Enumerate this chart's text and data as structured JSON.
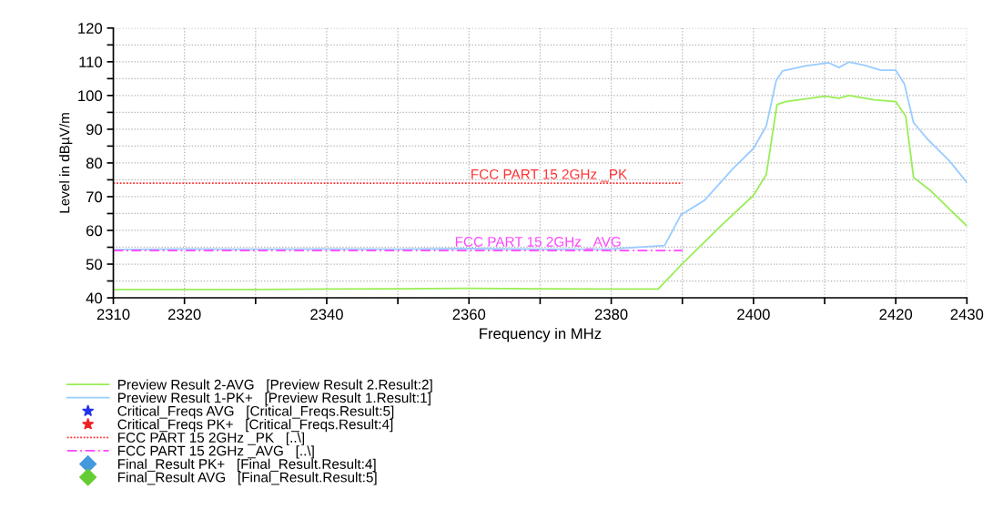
{
  "chart_data": {
    "type": "line",
    "xlabel": "Frequency in MHz",
    "ylabel": "Level in dBµV/m",
    "xlim": [
      2310,
      2430
    ],
    "ylim": [
      40,
      120
    ],
    "xticks": [
      2310,
      2320,
      {
        "value": 2330,
        "label": null
      },
      2340,
      {
        "value": 2350,
        "label": null
      },
      2360,
      {
        "value": 2370,
        "label": null
      },
      2380,
      {
        "value": 2390,
        "label": null
      },
      2400,
      {
        "value": 2410,
        "label": null
      },
      2420,
      2430
    ],
    "yticks": [
      40,
      {
        "value": 45,
        "label": null
      },
      50,
      {
        "value": 55,
        "label": null
      },
      60,
      {
        "value": 65,
        "label": null
      },
      70,
      {
        "value": 75,
        "label": null
      },
      80,
      {
        "value": 85,
        "label": null
      },
      90,
      {
        "value": 95,
        "label": null
      },
      100,
      {
        "value": 105,
        "label": null
      },
      110,
      {
        "value": 115,
        "label": null
      },
      120
    ],
    "grid": true,
    "legend": "bottom",
    "series": [
      {
        "name": "Preview Result 2-AVG   [Preview Result 2.Result:2]",
        "color": "#99ee55",
        "x": [
          2310,
          2320,
          2330,
          2340,
          2350,
          2360,
          2370,
          2380,
          2386.6,
          2389.8,
          2395.4,
          2400,
          2401.8,
          2402.5,
          2403.3,
          2404.5,
          2410.1,
          2412,
          2413.4,
          2417,
          2420,
          2421.4,
          2422.5,
          2424.9,
          2430
        ],
        "values": [
          42.5,
          42.5,
          42.5,
          42.6,
          42.7,
          42.8,
          42.7,
          42.6,
          42.6,
          49.7,
          61.3,
          70.4,
          76.6,
          86.2,
          97.3,
          98.2,
          99.8,
          99.2,
          100,
          98.7,
          98.2,
          93.9,
          75.7,
          71.8,
          61.3
        ]
      },
      {
        "name": "Preview Result 1-PK+   [Preview Result 1.Result:1]",
        "color": "#99ccff",
        "x": [
          2310,
          2320,
          2330,
          2340,
          2350,
          2360,
          2370,
          2380,
          2387.5,
          2389.8,
          2393.1,
          2397.2,
          2400,
          2401.8,
          2403.2,
          2404.1,
          2407.3,
          2410.6,
          2412,
          2413.4,
          2415.6,
          2417.9,
          2420,
          2421.2,
          2422.5,
          2424.4,
          2427.6,
          2430
        ],
        "values": [
          54.3,
          54.5,
          54.4,
          54.5,
          54.4,
          54.6,
          54.4,
          54.5,
          55.5,
          64.6,
          68.9,
          78.5,
          84.3,
          91,
          104.5,
          107.3,
          108.8,
          109.7,
          108.3,
          109.9,
          109,
          107.5,
          107.5,
          103.5,
          92,
          87.2,
          80.5,
          74.2
        ]
      },
      {
        "name": "Critical_Freqs AVG   [Critical_Freqs.Result:5]",
        "type": "scatter",
        "marker": "star",
        "color": "#2233ee"
      },
      {
        "name": "Critical_Freqs PK+   [Critical_Freqs.Result:4]",
        "type": "scatter",
        "marker": "star",
        "color": "#ee2222"
      },
      {
        "name": "FCC PART 15 2GHz _PK   [..\\]",
        "color": "#ff3333",
        "line_style": "dotted",
        "x": [
          2310,
          2390
        ],
        "values": [
          74,
          74
        ]
      },
      {
        "name": "FCC PART 15 2GHz _AVG   [..\\]",
        "color": "#ff44ff",
        "line_style": "dashed",
        "x": [
          2310,
          2390
        ],
        "values": [
          54,
          54
        ]
      },
      {
        "name": "Final_Result PK+   [Final_Result.Result:4]",
        "type": "scatter",
        "marker": "diamond",
        "color": "#4499dd"
      },
      {
        "name": "Final_Result AVG   [Final_Result.Result:5]",
        "type": "scatter",
        "marker": "diamond",
        "color": "#66cc33"
      }
    ],
    "annotations": [
      {
        "text": "FCC PART 15 2GHz _PK",
        "x": 2360.2,
        "y": 74
      },
      {
        "text": "FCC PART 15 2GHz _AVG",
        "x": 2358,
        "y": 54
      }
    ]
  }
}
